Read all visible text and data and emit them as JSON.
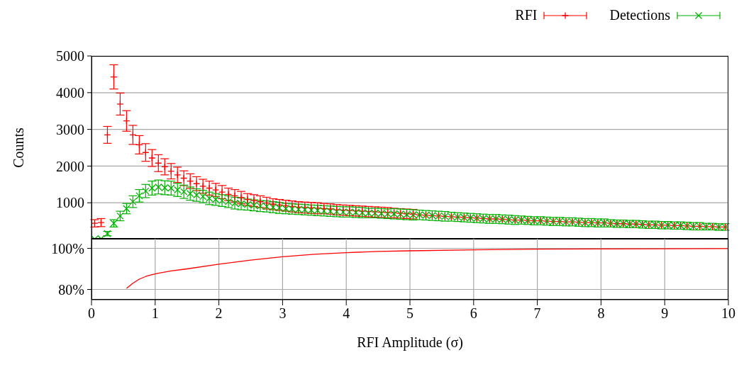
{
  "chart_data": [
    {
      "type": "scatter",
      "ylabel": "Counts",
      "xlim": [
        0,
        10
      ],
      "xticks": [
        0,
        1,
        2,
        3,
        4,
        5,
        6,
        7,
        8,
        9,
        10
      ],
      "ylim": [
        0,
        5000
      ],
      "yticks": [
        1000,
        2000,
        3000,
        4000,
        5000
      ],
      "grid": true,
      "legend": "top right",
      "tick_labels": "y",
      "x": [
        0.05,
        0.15,
        0.25,
        0.35,
        0.45,
        0.55,
        0.65,
        0.75,
        0.85,
        0.95,
        1.05,
        1.15,
        1.25,
        1.35,
        1.45,
        1.55,
        1.65,
        1.75,
        1.85,
        1.95,
        2.05,
        2.15,
        2.25,
        2.35,
        2.45,
        2.55,
        2.65,
        2.75,
        2.85,
        2.95,
        3.05,
        3.15,
        3.25,
        3.35,
        3.45,
        3.55,
        3.65,
        3.75,
        3.85,
        3.95,
        4.05,
        4.15,
        4.25,
        4.35,
        4.45,
        4.55,
        4.65,
        4.75,
        4.85,
        4.95,
        5.05,
        5.15,
        5.25,
        5.35,
        5.45,
        5.55,
        5.65,
        5.75,
        5.85,
        5.95,
        6.05,
        6.15,
        6.25,
        6.35,
        6.45,
        6.55,
        6.65,
        6.75,
        6.85,
        6.95,
        7.05,
        7.15,
        7.25,
        7.35,
        7.45,
        7.55,
        7.65,
        7.75,
        7.85,
        7.95,
        8.05,
        8.15,
        8.25,
        8.35,
        8.45,
        8.55,
        8.65,
        8.75,
        8.85,
        8.95,
        9.05,
        9.15,
        9.25,
        9.35,
        9.45,
        9.55,
        9.65,
        9.75,
        9.85,
        9.95
      ],
      "series": [
        {
          "name": "RFI",
          "color": "#ff0000",
          "marker": "plus",
          "values": [
            440,
            460,
            2850,
            4430,
            3690,
            3230,
            2850,
            2580,
            2370,
            2220,
            2080,
            1980,
            1860,
            1760,
            1670,
            1590,
            1520,
            1450,
            1400,
            1350,
            1290,
            1230,
            1190,
            1140,
            1090,
            1060,
            1030,
            990,
            960,
            940,
            920,
            900,
            880,
            870,
            860,
            850,
            840,
            830,
            810,
            800,
            790,
            780,
            770,
            760,
            750,
            740,
            730,
            720,
            710,
            700,
            690,
            670,
            660,
            650,
            640,
            630,
            620,
            610,
            600,
            590,
            580,
            570,
            560,
            560,
            550,
            540,
            530,
            530,
            520,
            510,
            510,
            500,
            490,
            490,
            480,
            480,
            470,
            460,
            460,
            450,
            450,
            440,
            430,
            430,
            420,
            420,
            410,
            400,
            400,
            390,
            390,
            380,
            380,
            370,
            360,
            360,
            350,
            350,
            340,
            340
          ],
          "errors": [
            100,
            110,
            230,
            330,
            300,
            280,
            260,
            250,
            240,
            230,
            230,
            220,
            210,
            210,
            200,
            200,
            190,
            190,
            190,
            180,
            180,
            170,
            170,
            170,
            160,
            160,
            160,
            160,
            150,
            150,
            150,
            150,
            150,
            150,
            150,
            150,
            140,
            140,
            140,
            140,
            140,
            140,
            140,
            140,
            140,
            140,
            140,
            130,
            130,
            130,
            130,
            null,
            null,
            null,
            null,
            null,
            null,
            null,
            null,
            null,
            null,
            null,
            null,
            null,
            null,
            null,
            null,
            null,
            null,
            null,
            null,
            null,
            null,
            null,
            null,
            null,
            null,
            null,
            null,
            null,
            null,
            null,
            null,
            null,
            null,
            null,
            null,
            null,
            null,
            null,
            null,
            null,
            null,
            null,
            null,
            null,
            null,
            null,
            null,
            null
          ]
        },
        {
          "name": "Detections",
          "color": "#00b000",
          "marker": "cross",
          "values": [
            10,
            20,
            160,
            440,
            640,
            840,
            1030,
            1190,
            1320,
            1400,
            1430,
            1410,
            1400,
            1350,
            1300,
            1250,
            1210,
            1170,
            1120,
            1090,
            1060,
            1030,
            990,
            970,
            950,
            930,
            910,
            900,
            880,
            860,
            840,
            830,
            820,
            810,
            800,
            790,
            780,
            770,
            760,
            750,
            750,
            740,
            730,
            720,
            720,
            710,
            700,
            700,
            690,
            680,
            670,
            670,
            660,
            650,
            640,
            630,
            620,
            610,
            600,
            590,
            580,
            570,
            560,
            560,
            550,
            540,
            530,
            530,
            520,
            510,
            510,
            500,
            490,
            490,
            480,
            480,
            470,
            460,
            460,
            450,
            450,
            440,
            430,
            430,
            420,
            420,
            410,
            400,
            400,
            390,
            390,
            380,
            380,
            370,
            360,
            360,
            350,
            350,
            340,
            340
          ],
          "errors": [
            null,
            null,
            60,
            100,
            130,
            140,
            160,
            170,
            180,
            190,
            190,
            190,
            190,
            180,
            180,
            180,
            170,
            170,
            170,
            160,
            160,
            160,
            160,
            160,
            150,
            150,
            150,
            150,
            150,
            150,
            140,
            140,
            140,
            140,
            140,
            140,
            140,
            140,
            140,
            140,
            140,
            140,
            140,
            130,
            130,
            130,
            130,
            140,
            140,
            140,
            140,
            130,
            130,
            130,
            130,
            130,
            120,
            120,
            120,
            120,
            120,
            120,
            120,
            120,
            120,
            120,
            120,
            110,
            110,
            110,
            110,
            110,
            110,
            110,
            110,
            110,
            110,
            110,
            110,
            110,
            110,
            100,
            100,
            100,
            100,
            100,
            100,
            100,
            100,
            100,
            100,
            100,
            100,
            100,
            100,
            100,
            90,
            90,
            90,
            90
          ]
        }
      ]
    },
    {
      "type": "line",
      "xlabel": "RFI Amplitude (σ)",
      "xlim": [
        0,
        10
      ],
      "xticks": [
        0,
        1,
        2,
        3,
        4,
        5,
        6,
        7,
        8,
        9,
        10
      ],
      "ylim": [
        75,
        105
      ],
      "yticks": [
        {
          "value": 80,
          "label": "80%"
        },
        {
          "value": 100,
          "label": "100%"
        }
      ],
      "grid": true,
      "series": [
        {
          "color": "#ff0000",
          "x": [
            0.55,
            0.65,
            0.75,
            0.85,
            0.95,
            1.05,
            1.25,
            1.5,
            2,
            2.5,
            3,
            3.5,
            4,
            4.5,
            5,
            6,
            7,
            8,
            9,
            10
          ],
          "values": [
            80.5,
            83,
            85,
            86.3,
            87.2,
            87.9,
            89,
            90,
            92.3,
            94.3,
            95.9,
            97.1,
            97.9,
            98.5,
            98.8,
            99.3,
            99.6,
            99.7,
            99.8,
            99.9
          ]
        }
      ]
    }
  ]
}
